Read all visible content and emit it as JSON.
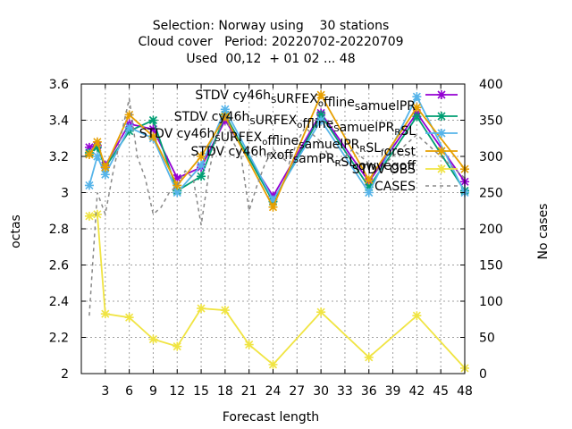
{
  "title_lines": [
    "Selection: Norway using    30 stations",
    "Cloud cover   Period: 20220702-20220709",
    "Used  00,12  + 01 02 ... 48"
  ],
  "chart_data": {
    "type": "line",
    "xlabel": "Forecast length",
    "ylabel": "octas",
    "y2label": "No cases",
    "xlim": [
      0,
      48
    ],
    "ylim": [
      2.0,
      3.6
    ],
    "y2lim": [
      0,
      400
    ],
    "x_ticks": [
      3,
      6,
      9,
      12,
      15,
      18,
      21,
      24,
      27,
      30,
      33,
      36,
      39,
      42,
      45,
      48
    ],
    "y_ticks": [
      2,
      2.2,
      2.4,
      2.6,
      2.8,
      3,
      3.2,
      3.4,
      3.6
    ],
    "y2_ticks": [
      0,
      50,
      100,
      150,
      200,
      250,
      300,
      350,
      400
    ],
    "grid": true,
    "legend_position": "top-right",
    "series": [
      {
        "name": "STDV cy46h_S URFEX_o ffline_S amuelPR",
        "legend_parts": [
          [
            "STDV cy46h",
            ""
          ],
          [
            "S",
            "sub"
          ],
          [
            "URFEX",
            ""
          ],
          [
            "o",
            "sub"
          ],
          [
            "ffline",
            ""
          ],
          [
            "S",
            "sub"
          ],
          [
            "amuelPR",
            ""
          ]
        ],
        "color": "#9400d3",
        "marker": "x-star",
        "axis": "y1",
        "x": [
          1,
          2,
          3,
          6,
          9,
          12,
          15,
          18,
          24,
          30,
          36,
          42,
          48
        ],
        "y": [
          3.25,
          3.26,
          3.15,
          3.38,
          3.35,
          3.08,
          3.14,
          3.4,
          2.98,
          3.44,
          3.06,
          3.44,
          3.06
        ]
      },
      {
        "name": "STDV cy46h_S URFEX_o ffline_S amuelPR_R SL",
        "legend_parts": [
          [
            "STDV cy46h",
            ""
          ],
          [
            "S",
            "sub"
          ],
          [
            "URFEX",
            ""
          ],
          [
            "o",
            "sub"
          ],
          [
            "ffline",
            ""
          ],
          [
            "S",
            "sub"
          ],
          [
            "amuelPR",
            ""
          ],
          [
            "R",
            "sub"
          ],
          [
            "SL",
            ""
          ]
        ],
        "color": "#009e73",
        "marker": "x-star",
        "axis": "y1",
        "x": [
          1,
          2,
          3,
          6,
          9,
          12,
          15,
          18,
          24,
          30,
          36,
          42,
          48
        ],
        "y": [
          3.22,
          3.25,
          3.14,
          3.34,
          3.4,
          3.01,
          3.09,
          3.43,
          2.95,
          3.43,
          3.03,
          3.42,
          3.01
        ]
      },
      {
        "name": "STDV cy46h_S URFEX_o ffline_S amuelPR_R SL_f orest",
        "legend_parts": [
          [
            "STDV cy46h",
            ""
          ],
          [
            "S",
            "sub"
          ],
          [
            "URFEX",
            ""
          ],
          [
            "o",
            "sub"
          ],
          [
            "ffline",
            ""
          ],
          [
            "S",
            "sub"
          ],
          [
            "amuelPR",
            ""
          ],
          [
            "R",
            "sub"
          ],
          [
            "SL",
            ""
          ],
          [
            "f",
            "sub"
          ],
          [
            "orest",
            ""
          ]
        ],
        "color": "#56b4e9",
        "marker": "x-star",
        "axis": "y1",
        "x": [
          1,
          2,
          3,
          6,
          9,
          12,
          15,
          18,
          24,
          30,
          36,
          42,
          48
        ],
        "y": [
          3.04,
          3.2,
          3.1,
          3.36,
          3.3,
          3.0,
          3.15,
          3.46,
          2.96,
          3.4,
          3.0,
          3.53,
          3.0
        ]
      },
      {
        "name": "STDV cy46h_f xoff_S amPR_R SL_l owvegoff",
        "legend_parts": [
          [
            "STDV cy46h",
            ""
          ],
          [
            "f",
            "sub"
          ],
          [
            "xoff",
            ""
          ],
          [
            "S",
            "sub"
          ],
          [
            "amPR",
            ""
          ],
          [
            "R",
            "sub"
          ],
          [
            "SL",
            ""
          ],
          [
            "l",
            "sub"
          ],
          [
            "owvegoff",
            ""
          ]
        ],
        "color": "#e69f00",
        "marker": "x-star",
        "axis": "y1",
        "x": [
          1,
          2,
          3,
          6,
          9,
          12,
          15,
          18,
          24,
          30,
          36,
          42,
          48
        ],
        "y": [
          3.21,
          3.28,
          3.14,
          3.43,
          3.31,
          3.04,
          3.2,
          3.42,
          2.92,
          3.54,
          3.07,
          3.47,
          3.13
        ]
      },
      {
        "name": "STDV OBS",
        "legend_parts": [
          [
            "STDV OBS",
            ""
          ]
        ],
        "color": "#f0e442",
        "marker": "x-star",
        "axis": "y1",
        "x": [
          1,
          2,
          3,
          6,
          9,
          12,
          15,
          18,
          21,
          24,
          30,
          36,
          42,
          48
        ],
        "y": [
          2.87,
          2.88,
          2.33,
          2.31,
          2.19,
          2.15,
          2.36,
          2.35,
          2.16,
          2.05,
          2.34,
          2.09,
          2.32,
          2.03
        ]
      },
      {
        "name": "CASES",
        "legend_parts": [
          [
            "CASES",
            ""
          ]
        ],
        "color": "#888888",
        "dashed": true,
        "axis": "y2",
        "x": [
          1,
          2,
          3,
          4,
          5,
          6,
          7,
          8,
          9,
          10,
          11,
          12,
          13,
          14,
          15,
          16,
          17,
          18,
          19,
          20,
          21,
          22,
          23,
          24,
          25,
          26,
          27,
          28,
          29,
          30,
          31,
          32,
          33,
          34,
          35,
          36,
          37,
          38,
          39,
          40,
          41,
          42,
          43,
          44,
          45,
          46,
          47,
          48
        ],
        "y": [
          80,
          250,
          220,
          280,
          330,
          380,
          300,
          270,
          220,
          230,
          250,
          260,
          280,
          270,
          205,
          280,
          330,
          360,
          320,
          300,
          225,
          260,
          290,
          310,
          300,
          290,
          320,
          340,
          330,
          320,
          300,
          290,
          300,
          310,
          300,
          290,
          280,
          290,
          300,
          310,
          320,
          330,
          320,
          310,
          300,
          290,
          280,
          270
        ]
      }
    ]
  }
}
